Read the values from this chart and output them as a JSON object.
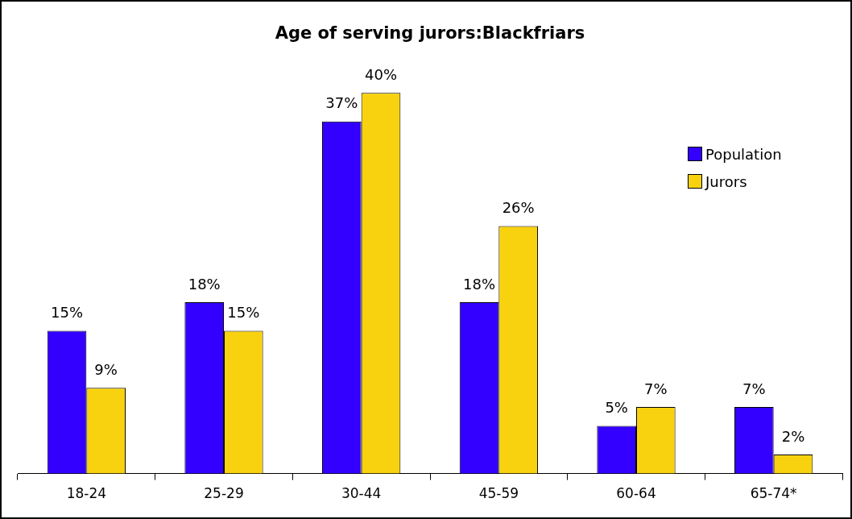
{
  "chart_data": {
    "type": "bar",
    "title": "Age of serving jurors:Blackfriars",
    "categories": [
      "18-24",
      "25-29",
      "30-44",
      "45-59",
      "60-64",
      "65-74*"
    ],
    "series": [
      {
        "name": "Population",
        "color": "#3300ff",
        "values": [
          15,
          18,
          37,
          18,
          5,
          7
        ],
        "value_labels": [
          "15%",
          "18%",
          "37%",
          "18%",
          "5%",
          "7%"
        ]
      },
      {
        "name": "Jurors",
        "color": "#f9d20f",
        "values": [
          9,
          15,
          40,
          26,
          7,
          2
        ],
        "value_labels": [
          "9%",
          "15%",
          "40%",
          "26%",
          "7%",
          "2%"
        ]
      }
    ],
    "legend": "top right"
  }
}
